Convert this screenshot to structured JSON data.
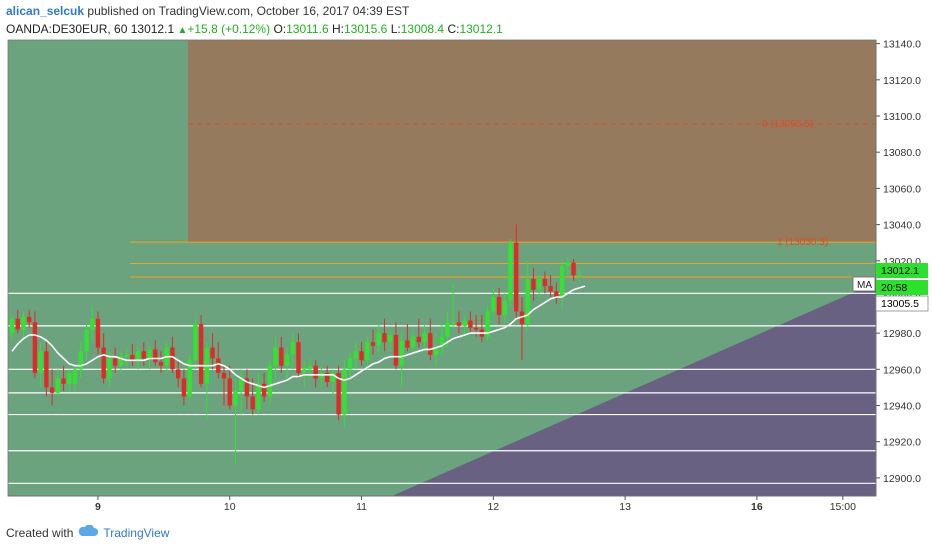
{
  "header": {
    "author": "alican_selcuk",
    "published_text": "published on TradingView.com, October 16, 2017 04:39 EST",
    "symbol": "OANDA:DE30EUR, 60",
    "last": "13012.1",
    "change": "+15.8 (+0.12%)",
    "o_label": "O:",
    "o_value": "13011.6",
    "h_label": "H:",
    "h_value": "13015.6",
    "l_label": "L:",
    "l_value": "13008.4",
    "c_label": "C:",
    "c_value": "13012.1"
  },
  "footer": {
    "created_with": "Created with",
    "brand": "TradingView"
  },
  "colors": {
    "green_zone": "#6aa37e",
    "brown_zone": "#957a5d",
    "purple_zone": "#696182",
    "bull": "#33e233",
    "bear": "#e02a2a",
    "orange": "#f5a020",
    "level": "#ffffff"
  },
  "chart_data": {
    "type": "candlestick",
    "y_axis": {
      "min": 12890,
      "max": 13142,
      "ticks": [
        13140.0,
        13120.0,
        13100.0,
        13080.0,
        13060.0,
        13040.0,
        13020.0,
        13000.0,
        12980.0,
        12960.0,
        12940.0,
        12920.0,
        12900.0
      ]
    },
    "x_axis": {
      "ticks": [
        {
          "label": "9",
          "bold": true,
          "bar": 15
        },
        {
          "label": "10",
          "bold": false,
          "bar": 38
        },
        {
          "label": "11",
          "bold": false,
          "bar": 61
        },
        {
          "label": "12",
          "bold": false,
          "bar": 84
        },
        {
          "label": "13",
          "bold": false,
          "bar": 107
        },
        {
          "label": "16",
          "bold": true,
          "bar": 130
        },
        {
          "label": "15:00",
          "bold": false,
          "bar": 145
        }
      ]
    },
    "price_labels": [
      {
        "text": "13012.1",
        "value": 13012.1,
        "style": "green"
      },
      {
        "text": "20:58",
        "value": 13007,
        "style": "green"
      },
      {
        "text": "13005.5",
        "value": 13005.5,
        "style": "white"
      }
    ],
    "ma_tag": "MA",
    "fib_labels": [
      {
        "text": "0 (13095.5)",
        "value": 13095.5
      },
      {
        "text": "1 (13030.3)",
        "value": 13030.3
      }
    ],
    "orange_levels": [
      13095.5,
      13030.3,
      13018.5,
      13011.0
    ],
    "white_levels": [
      13002,
      12984,
      12960,
      12947,
      12935,
      12915,
      12897
    ],
    "bars": [
      {
        "o": 12980,
        "h": 12990,
        "l": 12975,
        "c": 12988
      },
      {
        "o": 12988,
        "h": 12993,
        "l": 12980,
        "c": 12982
      },
      {
        "o": 12982,
        "h": 12992,
        "l": 12978,
        "c": 12989
      },
      {
        "o": 12989,
        "h": 12993,
        "l": 12983,
        "c": 12986
      },
      {
        "o": 12986,
        "h": 12992,
        "l": 12955,
        "c": 12958
      },
      {
        "o": 12958,
        "h": 12975,
        "l": 12950,
        "c": 12970
      },
      {
        "o": 12970,
        "h": 12975,
        "l": 12945,
        "c": 12950
      },
      {
        "o": 12950,
        "h": 12960,
        "l": 12940,
        "c": 12947
      },
      {
        "o": 12947,
        "h": 12960,
        "l": 12945,
        "c": 12955
      },
      {
        "o": 12955,
        "h": 12962,
        "l": 12948,
        "c": 12952
      },
      {
        "o": 12952,
        "h": 12960,
        "l": 12948,
        "c": 12958
      },
      {
        "o": 12952,
        "h": 12962,
        "l": 12948,
        "c": 12960
      },
      {
        "o": 12960,
        "h": 12975,
        "l": 12955,
        "c": 12970
      },
      {
        "o": 12970,
        "h": 12985,
        "l": 12965,
        "c": 12982
      },
      {
        "o": 12982,
        "h": 12995,
        "l": 12975,
        "c": 12988
      },
      {
        "o": 12988,
        "h": 12992,
        "l": 12968,
        "c": 12972
      },
      {
        "o": 12972,
        "h": 12980,
        "l": 12952,
        "c": 12955
      },
      {
        "o": 12955,
        "h": 12970,
        "l": 12950,
        "c": 12966
      },
      {
        "o": 12966,
        "h": 12972,
        "l": 12958,
        "c": 12962
      },
      {
        "o": 12962,
        "h": 12970,
        "l": 12958,
        "c": 12967
      },
      {
        "o": 12967,
        "h": 12972,
        "l": 12962,
        "c": 12968
      },
      {
        "o": 12968,
        "h": 12974,
        "l": 12962,
        "c": 12965
      },
      {
        "o": 12965,
        "h": 12972,
        "l": 12960,
        "c": 12970
      },
      {
        "o": 12970,
        "h": 12975,
        "l": 12962,
        "c": 12966
      },
      {
        "o": 12966,
        "h": 12973,
        "l": 12960,
        "c": 12971
      },
      {
        "o": 12971,
        "h": 12976,
        "l": 12962,
        "c": 12964
      },
      {
        "o": 12964,
        "h": 12970,
        "l": 12958,
        "c": 12962
      },
      {
        "o": 12962,
        "h": 12975,
        "l": 12958,
        "c": 12972
      },
      {
        "o": 12972,
        "h": 12978,
        "l": 12958,
        "c": 12960
      },
      {
        "o": 12960,
        "h": 12965,
        "l": 12950,
        "c": 12955
      },
      {
        "o": 12955,
        "h": 12960,
        "l": 12940,
        "c": 12945
      },
      {
        "o": 12945,
        "h": 12968,
        "l": 12943,
        "c": 12965
      },
      {
        "o": 12965,
        "h": 12988,
        "l": 12960,
        "c": 12985
      },
      {
        "o": 12985,
        "h": 12990,
        "l": 12950,
        "c": 12952
      },
      {
        "o": 12952,
        "h": 12975,
        "l": 12932,
        "c": 12972
      },
      {
        "o": 12972,
        "h": 12980,
        "l": 12960,
        "c": 12966
      },
      {
        "o": 12966,
        "h": 12975,
        "l": 12955,
        "c": 12958
      },
      {
        "o": 12958,
        "h": 12962,
        "l": 12940,
        "c": 12955
      },
      {
        "o": 12955,
        "h": 12962,
        "l": 12938,
        "c": 12940
      },
      {
        "o": 12940,
        "h": 12955,
        "l": 12908,
        "c": 12948
      },
      {
        "o": 12948,
        "h": 12960,
        "l": 12935,
        "c": 12955
      },
      {
        "o": 12955,
        "h": 12960,
        "l": 12938,
        "c": 12945
      },
      {
        "o": 12945,
        "h": 12955,
        "l": 12935,
        "c": 12938
      },
      {
        "o": 12938,
        "h": 12958,
        "l": 12935,
        "c": 12952
      },
      {
        "o": 12952,
        "h": 12958,
        "l": 12942,
        "c": 12945
      },
      {
        "o": 12945,
        "h": 12965,
        "l": 12940,
        "c": 12962
      },
      {
        "o": 12962,
        "h": 12978,
        "l": 12955,
        "c": 12972
      },
      {
        "o": 12972,
        "h": 12978,
        "l": 12958,
        "c": 12962
      },
      {
        "o": 12962,
        "h": 12972,
        "l": 12955,
        "c": 12968
      },
      {
        "o": 12968,
        "h": 12980,
        "l": 12960,
        "c": 12975
      },
      {
        "o": 12975,
        "h": 12980,
        "l": 12955,
        "c": 12958
      },
      {
        "o": 12958,
        "h": 12965,
        "l": 12950,
        "c": 12960
      },
      {
        "o": 12960,
        "h": 12966,
        "l": 12955,
        "c": 12962
      },
      {
        "o": 12962,
        "h": 12965,
        "l": 12950,
        "c": 12955
      },
      {
        "o": 12955,
        "h": 12962,
        "l": 12950,
        "c": 12958
      },
      {
        "o": 12958,
        "h": 12962,
        "l": 12950,
        "c": 12953
      },
      {
        "o": 12953,
        "h": 12960,
        "l": 12945,
        "c": 12958
      },
      {
        "o": 12958,
        "h": 12962,
        "l": 12932,
        "c": 12935
      },
      {
        "o": 12935,
        "h": 12965,
        "l": 12928,
        "c": 12960
      },
      {
        "o": 12960,
        "h": 12970,
        "l": 12955,
        "c": 12966
      },
      {
        "o": 12966,
        "h": 12975,
        "l": 12960,
        "c": 12970
      },
      {
        "o": 12970,
        "h": 12975,
        "l": 12962,
        "c": 12965
      },
      {
        "o": 12965,
        "h": 12978,
        "l": 12960,
        "c": 12975
      },
      {
        "o": 12975,
        "h": 12982,
        "l": 12968,
        "c": 12973
      },
      {
        "o": 12973,
        "h": 12985,
        "l": 12968,
        "c": 12980
      },
      {
        "o": 12980,
        "h": 12988,
        "l": 12970,
        "c": 12975
      },
      {
        "o": 12975,
        "h": 12982,
        "l": 12970,
        "c": 12979
      },
      {
        "o": 12979,
        "h": 12986,
        "l": 12960,
        "c": 12962
      },
      {
        "o": 12962,
        "h": 12980,
        "l": 12950,
        "c": 12976
      },
      {
        "o": 12976,
        "h": 12985,
        "l": 12970,
        "c": 12972
      },
      {
        "o": 12972,
        "h": 12982,
        "l": 12968,
        "c": 12978
      },
      {
        "o": 12978,
        "h": 12988,
        "l": 12972,
        "c": 12975
      },
      {
        "o": 12975,
        "h": 12985,
        "l": 12970,
        "c": 12980
      },
      {
        "o": 12980,
        "h": 12988,
        "l": 12965,
        "c": 12968
      },
      {
        "o": 12968,
        "h": 12980,
        "l": 12962,
        "c": 12972
      },
      {
        "o": 12972,
        "h": 12985,
        "l": 12968,
        "c": 12978
      },
      {
        "o": 12978,
        "h": 12992,
        "l": 12972,
        "c": 12986
      },
      {
        "o": 12986,
        "h": 13008,
        "l": 12983,
        "c": 12986
      },
      {
        "o": 12986,
        "h": 12992,
        "l": 12980,
        "c": 12984
      },
      {
        "o": 12984,
        "h": 12990,
        "l": 12978,
        "c": 12987
      },
      {
        "o": 12987,
        "h": 12992,
        "l": 12980,
        "c": 12983
      },
      {
        "o": 12983,
        "h": 12990,
        "l": 12978,
        "c": 12982
      },
      {
        "o": 12982,
        "h": 12990,
        "l": 12975,
        "c": 12978
      },
      {
        "o": 12978,
        "h": 12995,
        "l": 12976,
        "c": 12992
      },
      {
        "o": 12992,
        "h": 13005,
        "l": 12988,
        "c": 13000
      },
      {
        "o": 13000,
        "h": 13005,
        "l": 12985,
        "c": 12990
      },
      {
        "o": 12990,
        "h": 13002,
        "l": 12985,
        "c": 12998
      },
      {
        "o": 12998,
        "h": 13032,
        "l": 12995,
        "c": 13030
      },
      {
        "o": 13030,
        "h": 13040,
        "l": 12988,
        "c": 12992
      },
      {
        "o": 12992,
        "h": 13000,
        "l": 12965,
        "c": 12985
      },
      {
        "o": 12985,
        "h": 13020,
        "l": 12982,
        "c": 13010
      },
      {
        "o": 13010,
        "h": 13016,
        "l": 12998,
        "c": 13004
      },
      {
        "o": 13004,
        "h": 13012,
        "l": 13000,
        "c": 13010
      },
      {
        "o": 13010,
        "h": 13014,
        "l": 13002,
        "c": 13006
      },
      {
        "o": 13006,
        "h": 13012,
        "l": 13000,
        "c": 13003
      },
      {
        "o": 13003,
        "h": 13008,
        "l": 12996,
        "c": 13000
      },
      {
        "o": 13000,
        "h": 13020,
        "l": 12993,
        "c": 13017
      },
      {
        "o": 13017,
        "h": 13022,
        "l": 13012,
        "c": 13019
      },
      {
        "o": 13019,
        "h": 13021,
        "l": 13009,
        "c": 13012
      },
      {
        "o": 13011.6,
        "h": 13015.6,
        "l": 13008.4,
        "c": 13012.1
      }
    ],
    "ma": [
      12970,
      12974,
      12977,
      12979,
      12979,
      12978,
      12976,
      12973,
      12969,
      12966,
      12963,
      12962,
      12962,
      12963,
      12965,
      12967,
      12968,
      12967,
      12967,
      12966,
      12965,
      12965,
      12965,
      12965,
      12966,
      12966,
      12966,
      12967,
      12967,
      12965,
      12963,
      12962,
      12962,
      12962,
      12962,
      12962,
      12963,
      12962,
      12960,
      12957,
      12955,
      12953,
      12952,
      12951,
      12950,
      12951,
      12952,
      12953,
      12954,
      12956,
      12956,
      12957,
      12957,
      12957,
      12957,
      12957,
      12957,
      12955,
      12954,
      12955,
      12957,
      12959,
      12961,
      12963,
      12964,
      12966,
      12967,
      12967,
      12967,
      12968,
      12969,
      12970,
      12971,
      12971,
      12972,
      12973,
      12975,
      12977,
      12978,
      12979,
      12980,
      12980,
      12980,
      12980,
      12981,
      12982,
      12983,
      12985,
      12988,
      12989,
      12990,
      12993,
      12995,
      12997,
      12999,
      13000,
      13000,
      13002,
      13004,
      13005,
      13006
    ]
  }
}
